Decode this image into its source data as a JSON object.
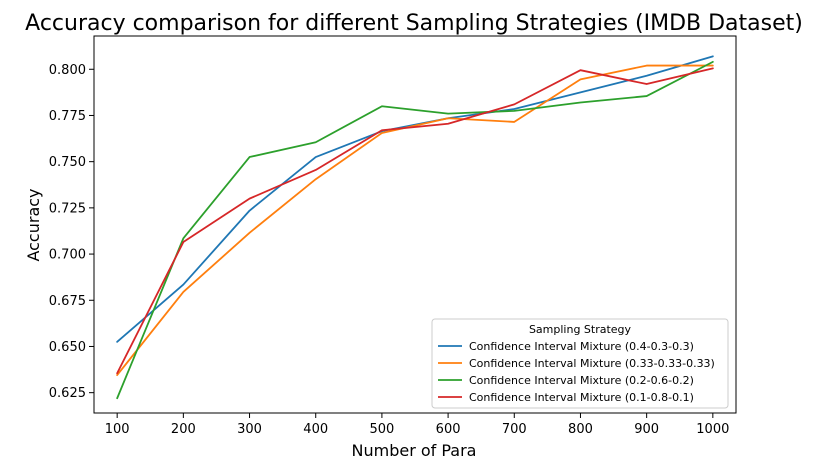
{
  "chart_data": {
    "type": "line",
    "title": "Accuracy comparison for different Sampling Strategies (IMDB Dataset)",
    "xlabel": "Number of Para",
    "ylabel": "Accuracy",
    "x": [
      100,
      200,
      300,
      400,
      500,
      600,
      700,
      800,
      900,
      1000
    ],
    "xlim": [
      65,
      1035
    ],
    "ylim": [
      0.614,
      0.818
    ],
    "xticks": [
      100,
      200,
      300,
      400,
      500,
      600,
      700,
      800,
      900,
      1000
    ],
    "yticks": [
      0.625,
      0.65,
      0.675,
      0.7,
      0.725,
      0.75,
      0.775,
      0.8
    ],
    "ytick_labels": [
      "0.625",
      "0.650",
      "0.675",
      "0.700",
      "0.725",
      "0.750",
      "0.775",
      "0.800"
    ],
    "grid": false,
    "legend": {
      "title": "Sampling Strategy",
      "placement": "lower-right"
    },
    "series": [
      {
        "name": "Confidence Interval Mixture (0.4-0.3-0.3)",
        "color": "#1f77b4",
        "values": [
          0.6525,
          0.6835,
          0.7235,
          0.7525,
          0.7665,
          0.7735,
          0.7785,
          0.7875,
          0.7965,
          0.807
        ]
      },
      {
        "name": "Confidence Interval Mixture (0.33-0.33-0.33)",
        "color": "#ff7f0e",
        "values": [
          0.6345,
          0.6795,
          0.7115,
          0.7405,
          0.7655,
          0.7735,
          0.7715,
          0.7945,
          0.802,
          0.802
        ]
      },
      {
        "name": "Confidence Interval Mixture (0.2-0.6-0.2)",
        "color": "#2ca02c",
        "values": [
          0.622,
          0.7085,
          0.7525,
          0.7605,
          0.78,
          0.776,
          0.7775,
          0.782,
          0.7855,
          0.804
        ]
      },
      {
        "name": "Confidence Interval Mixture (0.1-0.8-0.1)",
        "color": "#d62728",
        "values": [
          0.6355,
          0.7065,
          0.73,
          0.7455,
          0.767,
          0.7705,
          0.781,
          0.7995,
          0.792,
          0.8005
        ]
      }
    ]
  }
}
